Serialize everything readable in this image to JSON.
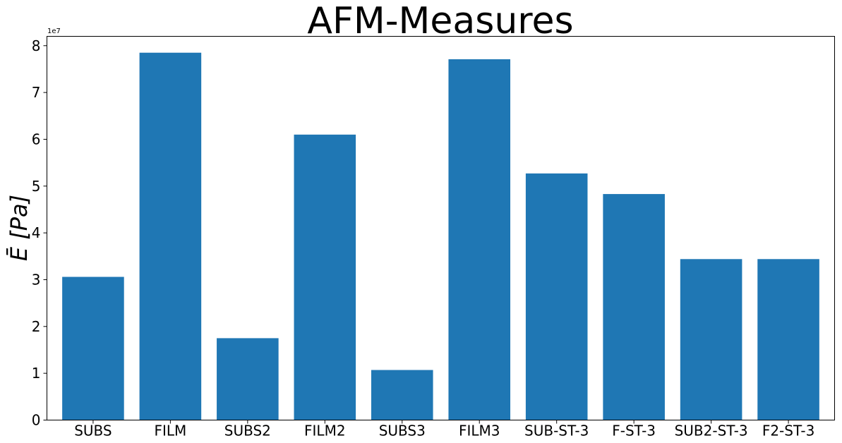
{
  "chart_data": {
    "type": "bar",
    "title": "AFM-Measures",
    "ylabel": "Ē [Pa]",
    "y_offset_label": "1e7",
    "categories": [
      "SUBS",
      "FILM",
      "SUBS2",
      "FILM2",
      "SUBS3",
      "FILM3",
      "SUB-ST-3",
      "F-ST-3",
      "SUB2-ST-3",
      "F2-ST-3"
    ],
    "values": [
      30600000,
      78500000,
      17500000,
      61000000,
      10700000,
      77100000,
      52700000,
      48300000,
      34400000,
      34400000
    ],
    "ylim": [
      0,
      82000000
    ],
    "yticks": [
      0,
      10000000,
      20000000,
      30000000,
      40000000,
      50000000,
      60000000,
      70000000,
      80000000
    ],
    "ytick_labels": [
      "0",
      "1",
      "2",
      "3",
      "4",
      "5",
      "6",
      "7",
      "8"
    ],
    "bar_color": "#1f77b4",
    "grid": false,
    "legend": "none"
  }
}
